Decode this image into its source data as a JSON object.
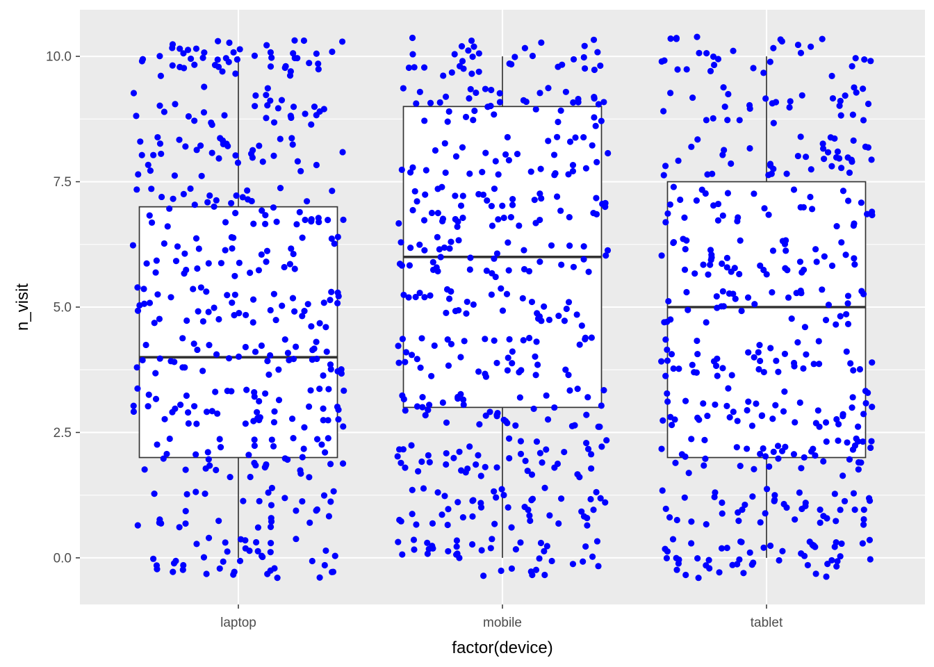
{
  "chart_data": {
    "type": "boxplot",
    "title": "",
    "xlabel": "factor(device)",
    "ylabel": "n_visit",
    "categories": [
      "laptop",
      "mobile",
      "tablet"
    ],
    "ylim": [
      -0.93,
      10.93
    ],
    "yticks": [
      0.0,
      2.5,
      5.0,
      7.5,
      10.0
    ],
    "ytick_labels": [
      "0.0",
      "2.5",
      "5.0",
      "7.5",
      "10.0"
    ],
    "boxes": [
      {
        "category": "laptop",
        "min": 0,
        "q1": 2,
        "median": 4,
        "q3": 7,
        "max": 10
      },
      {
        "category": "mobile",
        "min": 0,
        "q1": 3,
        "median": 6,
        "q3": 9,
        "max": 10
      },
      {
        "category": "tablet",
        "min": 0,
        "q1": 2,
        "median": 5,
        "q3": 7.5,
        "max": 10
      }
    ],
    "jitter": {
      "values": [
        0,
        1,
        2,
        3,
        4,
        5,
        6,
        7,
        8,
        9,
        10
      ],
      "points_per_category": 440,
      "spread_x": 0.4,
      "spread_y": 0.4
    },
    "grid": true,
    "legend": "none",
    "colors": {
      "panel": "#ebebeb",
      "grid": "#ffffff",
      "points": "#0000ff",
      "box_fill": "#ffffff",
      "box_line": "#333333"
    }
  }
}
